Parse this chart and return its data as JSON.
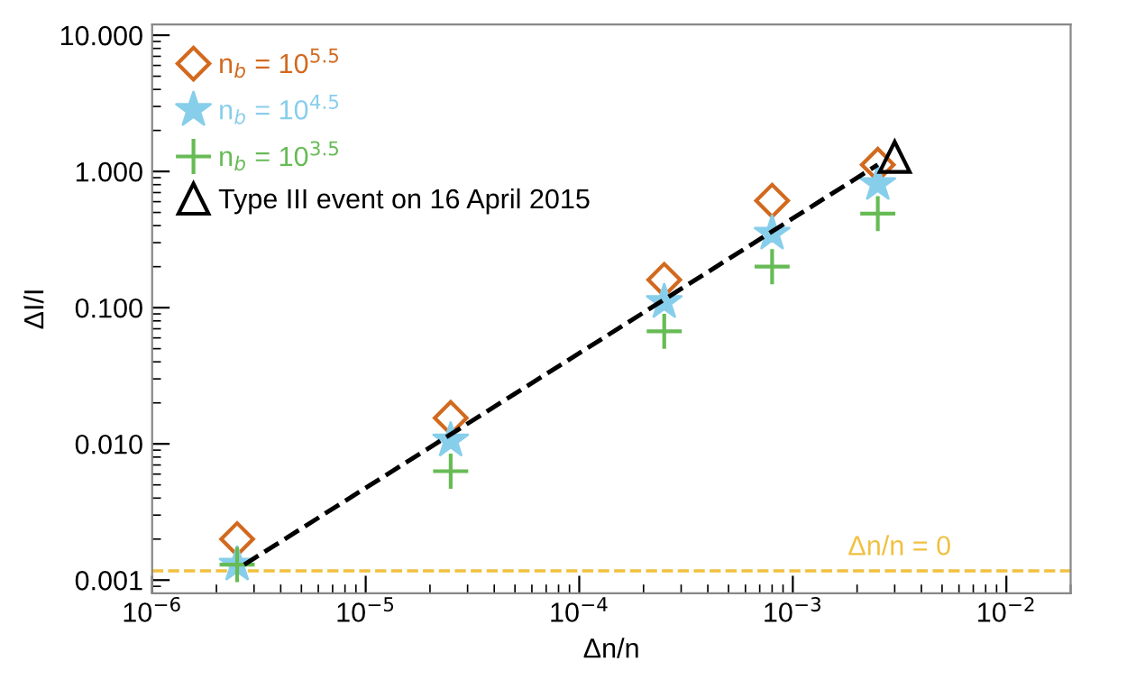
{
  "chart_data": {
    "type": "scatter",
    "xlabel": "Δn/n",
    "ylabel": "ΔI/I",
    "log": "xy",
    "grid": false,
    "legend": "top left",
    "xlim": [
      1e-06,
      0.02
    ],
    "ylim": [
      0.0008,
      12
    ],
    "xticks": [
      {
        "value": 1e-06,
        "label": "10$^{−6}$"
      },
      {
        "value": 1e-05,
        "label": "10$^{−5}$"
      },
      {
        "value": 0.0001,
        "label": "10$^{−4}$"
      },
      {
        "value": 0.001,
        "label": "10$^{−3}$"
      },
      {
        "value": 0.01,
        "label": "10$^{−2}$"
      }
    ],
    "yticks": [
      {
        "value": 0.001,
        "label": "0.001"
      },
      {
        "value": 0.01,
        "label": "0.010"
      },
      {
        "value": 0.1,
        "label": "0.100"
      },
      {
        "value": 1,
        "label": "1.000"
      },
      {
        "value": 10,
        "label": "10.000"
      }
    ],
    "series": [
      {
        "type": "line",
        "color": "#000000",
        "line_style": "dashed",
        "marker": "none",
        "x": [
          2.7e-06,
          0.0025
        ],
        "values": [
          0.0013,
          1.12
        ]
      },
      {
        "name": "n$_{b}$ = 10$^{5.5}$",
        "color": "#d2691e",
        "marker": "diamond",
        "x": [
          2.5e-06,
          2.5e-05,
          0.00025,
          0.0008,
          0.0025
        ],
        "values": [
          0.002,
          0.0155,
          0.16,
          0.61,
          1.12
        ]
      },
      {
        "name": "n$_{b}$ = 10$^{4.5}$",
        "color": "#87ceeb",
        "marker": "star",
        "x": [
          2.5e-06,
          2.5e-05,
          0.00025,
          0.0008,
          0.0025
        ],
        "values": [
          0.0013,
          0.0106,
          0.11,
          0.35,
          0.81
        ]
      },
      {
        "name": "n$_{b}$ = 10$^{3.5}$",
        "color": "#66bb55",
        "marker": "cross",
        "x": [
          2.5e-06,
          2.5e-05,
          0.00025,
          0.0008,
          0.0025
        ],
        "values": [
          0.0013,
          0.0063,
          0.067,
          0.2,
          0.49
        ]
      },
      {
        "name": "Type III event on 16 April 2015",
        "color": "#000000",
        "marker": "triangle",
        "x": [
          0.003
        ],
        "values": [
          1.28
        ]
      }
    ],
    "ref_lines": [
      {
        "axis": "y",
        "value": 0.00117,
        "label": "Δn/n = 0",
        "color": "#f0c040",
        "line_style": "dashed"
      }
    ]
  }
}
